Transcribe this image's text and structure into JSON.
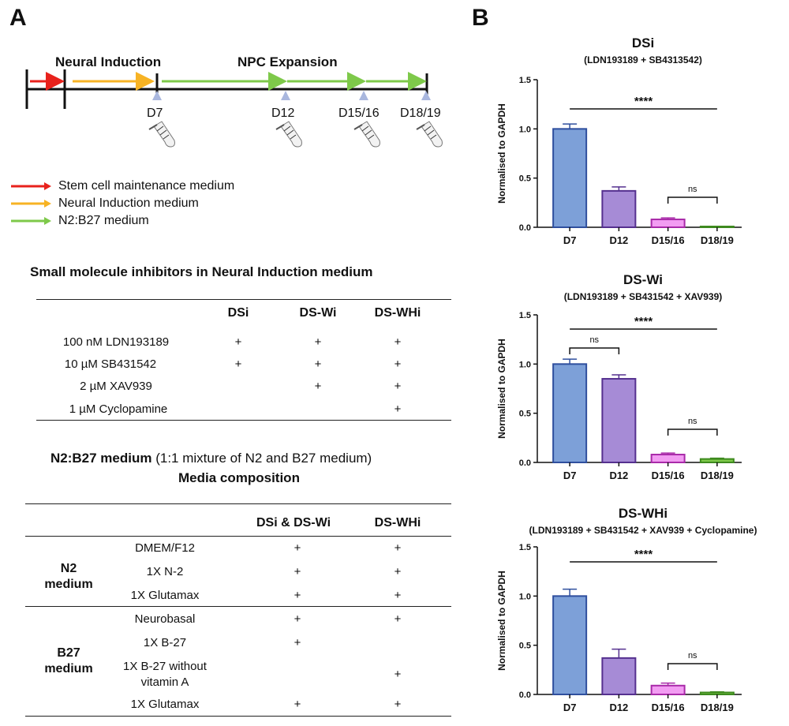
{
  "panel_a": {
    "letter": "A",
    "timeline": {
      "phase1": "Neural Induction",
      "phase2": "NPC Expansion",
      "days": [
        "D7",
        "D12",
        "D15/16",
        "D18/19"
      ]
    },
    "legend": [
      {
        "color": "#e8221c",
        "label": "Stem cell maintenance medium"
      },
      {
        "color": "#f7b324",
        "label": "Neural Induction medium"
      },
      {
        "color": "#7ec94a",
        "label": "N2:B27 medium"
      }
    ],
    "inhibitors": {
      "title": "Small molecule inhibitors in Neural Induction medium",
      "columns": [
        "DSi",
        "DS-Wi",
        "DS-WHi"
      ],
      "rows": [
        {
          "label": "100 nM LDN193189",
          "dsi": "+",
          "dswi": "+",
          "dswhi": "+"
        },
        {
          "label": "10 µM SB431542",
          "dsi": "+",
          "dswi": "+",
          "dswhi": "+"
        },
        {
          "label": "2 µM XAV939",
          "dsi": "",
          "dswi": "+",
          "dswhi": "+"
        },
        {
          "label": "1 µM Cyclopamine",
          "dsi": "",
          "dswi": "",
          "dswhi": "+"
        }
      ]
    },
    "media": {
      "title_bold": "N2:B27 medium",
      "title_rest": " (1:1 mixture of N2 and B27 medium)",
      "subtitle": "Media composition",
      "columns": [
        "DSi & DS-Wi",
        "DS-WHi"
      ],
      "group1": "N2\nmedium",
      "group2": "B27\nmedium",
      "rows": [
        {
          "label": "DMEM/F12",
          "a": "+",
          "b": "+"
        },
        {
          "label": "1X N-2",
          "a": "+",
          "b": "+"
        },
        {
          "label": "1X Glutamax",
          "a": "+",
          "b": "+"
        },
        {
          "label": "Neurobasal",
          "a": "+",
          "b": "+"
        },
        {
          "label": "1X B-27",
          "a": "+",
          "b": ""
        },
        {
          "label": "1X B-27 without\nvitamin A",
          "a": "",
          "b": "+"
        },
        {
          "label": "1X Glutamax",
          "a": "+",
          "b": "+"
        }
      ]
    }
  },
  "panel_b": {
    "letter": "B",
    "chart_data": [
      {
        "type": "bar",
        "title": "DSi",
        "subtitle": "(LDN193189 + SB4313542)",
        "ylabel": "Normalised to GAPDH",
        "ylim": [
          0,
          1.5
        ],
        "yticks": [
          "0.0",
          "0.5",
          "1.0",
          "1.5"
        ],
        "categories": [
          "D7",
          "D12",
          "D15/16",
          "D18/19"
        ],
        "values": [
          1.0,
          0.37,
          0.08,
          0.005
        ],
        "errors": [
          0.05,
          0.04,
          0.015,
          0.003
        ],
        "colors": [
          "#7da0d8",
          "#a68bd6",
          "#f29cf2",
          "#7ec94a"
        ],
        "edge_colors": [
          "#2f4f9e",
          "#55308f",
          "#a92aa9",
          "#3e8a1f"
        ],
        "annotations": [
          {
            "label": "****",
            "from": 0,
            "to": 3
          },
          {
            "label": "ns",
            "from": 2,
            "to": 3
          }
        ]
      },
      {
        "type": "bar",
        "title": "DS-Wi",
        "subtitle": "(LDN193189 + SB431542 + XAV939)",
        "ylabel": "Normalised to GAPDH",
        "ylim": [
          0,
          1.5
        ],
        "yticks": [
          "0.0",
          "0.5",
          "1.0",
          "1.5"
        ],
        "categories": [
          "D7",
          "D12",
          "D15/16",
          "D18/19"
        ],
        "values": [
          1.0,
          0.85,
          0.08,
          0.035
        ],
        "errors": [
          0.05,
          0.04,
          0.015,
          0.008
        ],
        "colors": [
          "#7da0d8",
          "#a68bd6",
          "#f29cf2",
          "#7ec94a"
        ],
        "edge_colors": [
          "#2f4f9e",
          "#55308f",
          "#a92aa9",
          "#3e8a1f"
        ],
        "annotations": [
          {
            "label": "****",
            "from": 0,
            "to": 3
          },
          {
            "label": "ns",
            "from": 0,
            "to": 1
          },
          {
            "label": "ns",
            "from": 2,
            "to": 3
          }
        ]
      },
      {
        "type": "bar",
        "title": "DS-WHi",
        "subtitle": "(LDN193189 + SB431542 + XAV939 + Cyclopamine)",
        "ylabel": "Normalised to GAPDH",
        "ylim": [
          0,
          1.5
        ],
        "yticks": [
          "0.0",
          "0.5",
          "1.0",
          "1.5"
        ],
        "categories": [
          "D7",
          "D12",
          "D15/16",
          "D18/19"
        ],
        "values": [
          1.0,
          0.37,
          0.09,
          0.02
        ],
        "errors": [
          0.07,
          0.09,
          0.025,
          0.006
        ],
        "colors": [
          "#7da0d8",
          "#a68bd6",
          "#f29cf2",
          "#7ec94a"
        ],
        "edge_colors": [
          "#2f4f9e",
          "#55308f",
          "#a92aa9",
          "#3e8a1f"
        ],
        "annotations": [
          {
            "label": "****",
            "from": 0,
            "to": 3
          },
          {
            "label": "ns",
            "from": 2,
            "to": 3
          }
        ]
      }
    ]
  }
}
